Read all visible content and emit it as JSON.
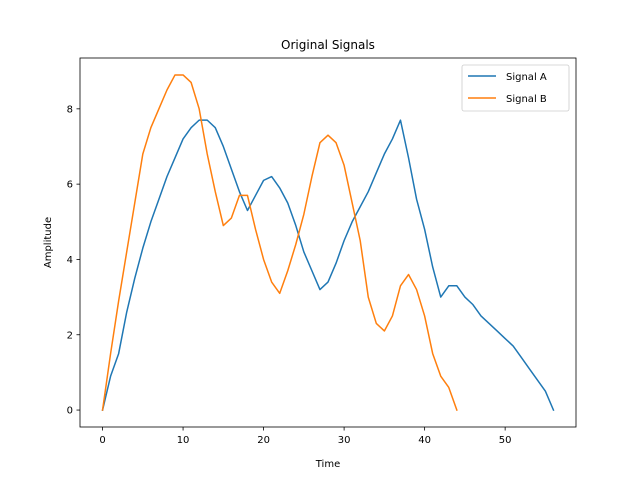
{
  "chart_data": {
    "type": "line",
    "title": "Original Signals",
    "xlabel": "Time",
    "ylabel": "Amplitude",
    "xlim": [
      -2.8,
      58.8
    ],
    "ylim": [
      -0.45,
      9.35
    ],
    "xticks": [
      0,
      10,
      20,
      30,
      40,
      50
    ],
    "yticks": [
      0,
      2,
      4,
      6,
      8
    ],
    "grid": false,
    "legend_position": "top-right",
    "series": [
      {
        "name": "Signal A",
        "color": "#1f77b4",
        "x": [
          0,
          1,
          2,
          3,
          4,
          5,
          6,
          7,
          8,
          9,
          10,
          11,
          12,
          13,
          14,
          15,
          16,
          17,
          18,
          19,
          20,
          21,
          22,
          23,
          24,
          25,
          26,
          27,
          28,
          29,
          30,
          31,
          32,
          33,
          34,
          35,
          36,
          37,
          38,
          39,
          40,
          41,
          42,
          43,
          44,
          45,
          46,
          47,
          48,
          49,
          50,
          51,
          52,
          53,
          54,
          55,
          56
        ],
        "y": [
          0,
          0.9,
          1.5,
          2.6,
          3.5,
          4.3,
          5.0,
          5.6,
          6.2,
          6.7,
          7.2,
          7.5,
          7.7,
          7.7,
          7.5,
          7.0,
          6.4,
          5.8,
          5.3,
          5.7,
          6.1,
          6.2,
          5.9,
          5.5,
          4.9,
          4.2,
          3.7,
          3.2,
          3.4,
          3.9,
          4.5,
          5.0,
          5.4,
          5.8,
          6.3,
          6.8,
          7.2,
          7.7,
          6.7,
          5.6,
          4.8,
          3.8,
          3.0,
          3.3,
          3.3,
          3.0,
          2.8,
          2.5,
          2.3,
          2.1,
          1.9,
          1.7,
          1.4,
          1.1,
          0.8,
          0.5,
          0
        ]
      },
      {
        "name": "Signal B",
        "color": "#ff7f0e",
        "x": [
          0,
          1,
          2,
          3,
          4,
          5,
          6,
          7,
          8,
          9,
          10,
          11,
          12,
          13,
          14,
          15,
          16,
          17,
          18,
          19,
          20,
          21,
          22,
          23,
          24,
          25,
          26,
          27,
          28,
          29,
          30,
          31,
          32,
          33,
          34,
          35,
          36,
          37,
          38,
          39,
          40,
          41,
          42,
          43,
          44
        ],
        "y": [
          0,
          1.5,
          2.9,
          4.2,
          5.5,
          6.8,
          7.5,
          8.0,
          8.5,
          8.9,
          8.9,
          8.7,
          8.0,
          6.8,
          5.8,
          4.9,
          5.1,
          5.7,
          5.7,
          4.8,
          4.0,
          3.4,
          3.1,
          3.7,
          4.4,
          5.2,
          6.2,
          7.1,
          7.3,
          7.1,
          6.5,
          5.5,
          4.5,
          3.0,
          2.3,
          2.1,
          2.5,
          3.3,
          3.6,
          3.2,
          2.5,
          1.5,
          0.9,
          0.6,
          0
        ]
      }
    ]
  }
}
